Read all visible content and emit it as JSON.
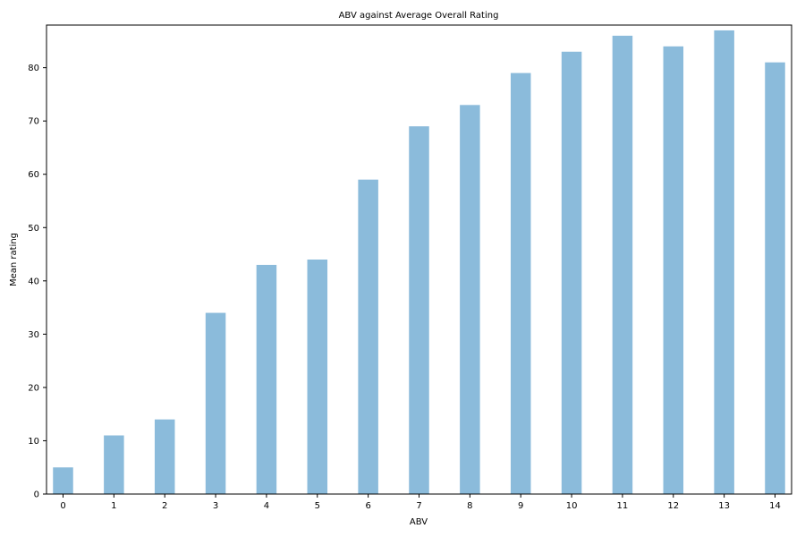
{
  "chart_data": {
    "type": "bar",
    "title": "ABV against Average Overall Rating",
    "xlabel": "ABV",
    "ylabel": "Mean rating",
    "categories": [
      "0",
      "1",
      "2",
      "3",
      "4",
      "5",
      "6",
      "7",
      "8",
      "9",
      "10",
      "11",
      "12",
      "13",
      "14"
    ],
    "values": [
      5,
      11,
      14,
      34,
      43,
      44,
      59,
      69,
      73,
      79,
      83,
      86,
      84,
      87,
      81
    ],
    "ylim": [
      0,
      88
    ],
    "yticks": [
      0,
      10,
      20,
      30,
      40,
      50,
      60,
      70,
      80
    ],
    "grid": false,
    "bar_color": "#8bbbdb"
  }
}
